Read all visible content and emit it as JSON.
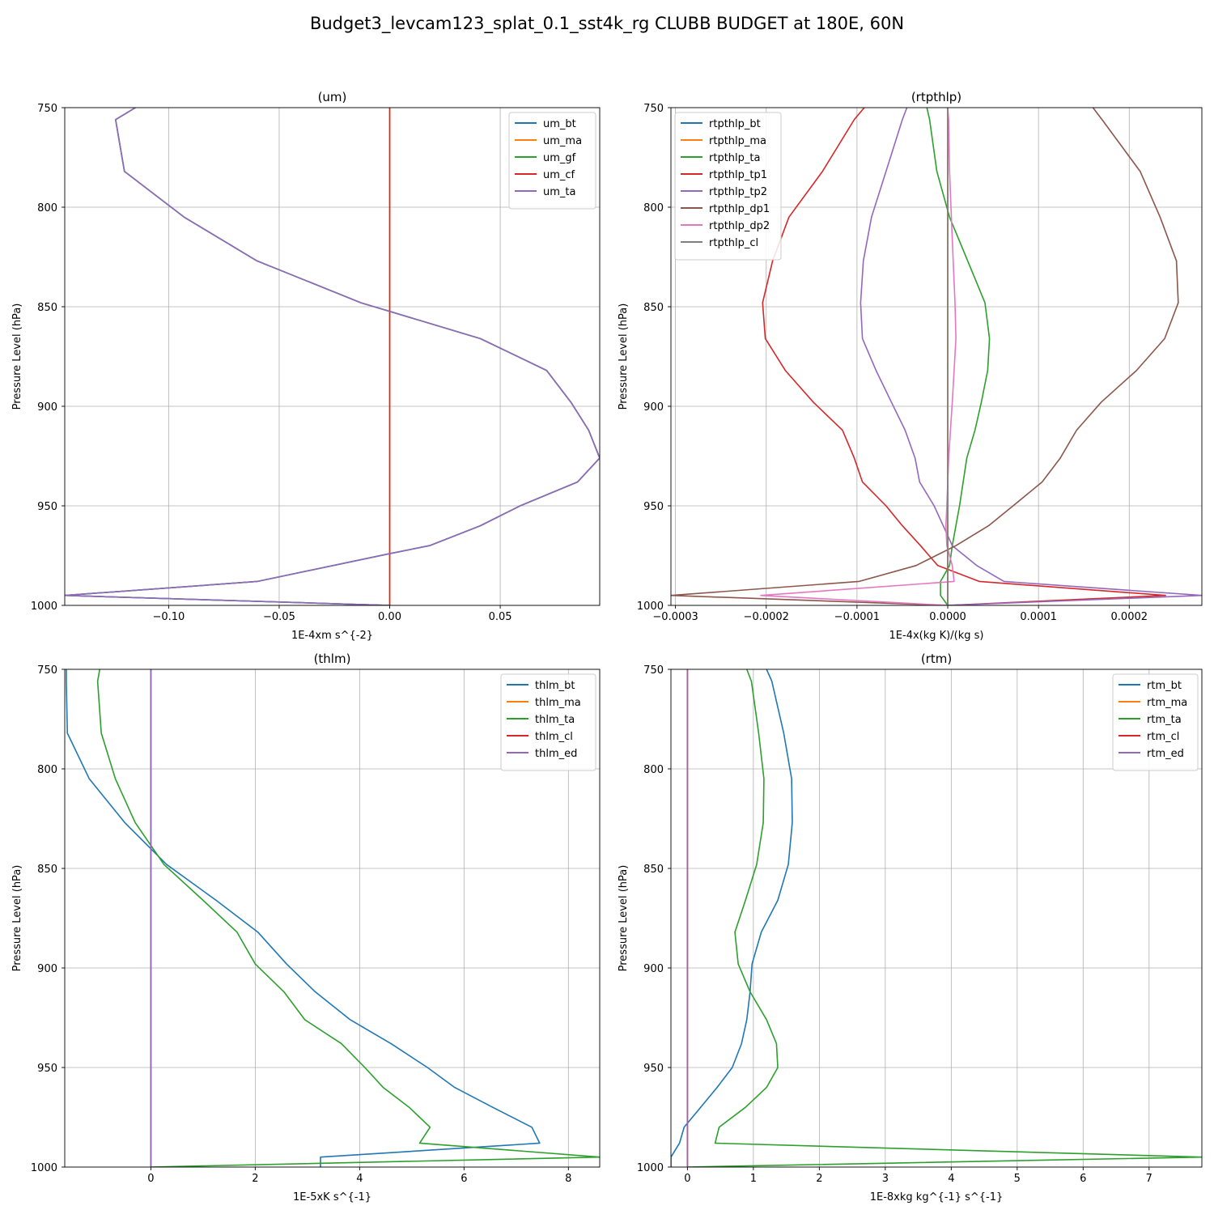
{
  "figure_title": "Budget3_levcam123_splat_0.1_sst4k_rg CLUBB BUDGET at 180E, 60N",
  "colors": {
    "c0": "#1f77b4",
    "c1": "#ff7f0e",
    "c2": "#2ca02c",
    "c3": "#d62728",
    "c4": "#9467bd",
    "c5": "#8c564b",
    "c6": "#e377c2",
    "c7": "#7f7f7f",
    "grid": "#b0b0b0"
  },
  "chart_data": [
    {
      "type": "line",
      "title": "(um)",
      "xlabel": "1E-4xm s^{-2}",
      "ylabel": "Pressure Level (hPa)",
      "xlim": [
        -0.147,
        0.095
      ],
      "ylim": [
        1000,
        750
      ],
      "grid": true,
      "legend_position": "top-right",
      "xticks": [
        -0.1,
        -0.05,
        0.0,
        0.05
      ],
      "xtick_labels": [
        "−0.10",
        "−0.05",
        "0.00",
        "0.05"
      ],
      "yticks": [
        750,
        800,
        850,
        900,
        950,
        1000
      ],
      "ytick_labels": [
        "750",
        "800",
        "850",
        "900",
        "950",
        "1000"
      ],
      "levels": [
        750,
        756,
        782,
        805,
        827,
        848,
        866,
        882,
        898,
        912,
        926,
        938,
        950,
        960,
        970,
        974,
        988,
        995,
        1000
      ],
      "series": [
        {
          "name": "um_bt",
          "color": "c0",
          "values": [
            -0.115,
            -0.124,
            -0.12,
            -0.093,
            -0.06,
            -0.013,
            0.041,
            0.071,
            0.082,
            0.09,
            0.095,
            0.085,
            0.059,
            0.041,
            0.018,
            0.0,
            -0.06,
            -0.147,
            0.0
          ]
        },
        {
          "name": "um_ma",
          "color": "c1",
          "values": [
            0,
            0,
            0,
            0,
            0,
            0,
            0,
            0,
            0,
            0,
            0,
            0,
            0,
            0,
            0,
            0,
            0,
            0,
            0
          ]
        },
        {
          "name": "um_gf",
          "color": "c2",
          "values": [
            -0.115,
            -0.124,
            -0.12,
            -0.093,
            -0.06,
            -0.013,
            0.041,
            0.071,
            0.082,
            0.09,
            0.095,
            0.085,
            0.059,
            0.041,
            0.018,
            0.0,
            -0.06,
            -0.147,
            0.0
          ]
        },
        {
          "name": "um_cf",
          "color": "c3",
          "values": [
            0,
            0,
            0,
            0,
            0,
            0,
            0,
            0,
            0,
            0,
            0,
            0,
            0,
            0,
            0,
            0,
            0,
            0,
            0
          ]
        },
        {
          "name": "um_ta",
          "color": "c4",
          "values": [
            -0.115,
            -0.124,
            -0.12,
            -0.093,
            -0.06,
            -0.013,
            0.041,
            0.071,
            0.082,
            0.09,
            0.095,
            0.085,
            0.059,
            0.041,
            0.018,
            0.0,
            -0.06,
            -0.147,
            0.0
          ]
        }
      ]
    },
    {
      "type": "line",
      "title": "(rtpthlp)",
      "xlabel": "1E-4x(kg K)/(kg s)",
      "ylabel": "Pressure Level (hPa)",
      "xlim": [
        -0.000305,
        0.00028
      ],
      "ylim": [
        1000,
        750
      ],
      "grid": true,
      "legend_position": "top-left",
      "xticks": [
        -0.0003,
        -0.0002,
        -0.0001,
        0.0,
        0.0001,
        0.0002
      ],
      "xtick_labels": [
        "−0.0003",
        "−0.0002",
        "−0.0001",
        "0.0000",
        "0.0001",
        "0.0002"
      ],
      "yticks": [
        750,
        800,
        850,
        900,
        950,
        1000
      ],
      "ytick_labels": [
        "750",
        "800",
        "850",
        "900",
        "950",
        "1000"
      ],
      "levels": [
        750,
        756,
        782,
        805,
        827,
        848,
        866,
        882,
        898,
        912,
        926,
        938,
        950,
        960,
        970,
        980,
        988,
        995,
        1000
      ],
      "series": [
        {
          "name": "rtpthlp_bt",
          "color": "c0",
          "values": [
            0,
            0,
            0,
            0,
            0,
            0,
            0,
            0,
            0,
            0,
            0,
            0,
            0,
            0,
            0,
            0,
            0,
            0,
            0
          ]
        },
        {
          "name": "rtpthlp_ma",
          "color": "c1",
          "values": [
            0,
            0,
            0,
            0,
            0,
            0,
            0,
            0,
            0,
            0,
            0,
            0,
            0,
            0,
            0,
            0,
            0,
            0,
            0
          ]
        },
        {
          "name": "rtpthlp_ta",
          "color": "c2",
          "values": [
            -2.3e-05,
            -2e-05,
            -1.2e-05,
            2e-06,
            2.2e-05,
            4.1e-05,
            4.6e-05,
            4.4e-05,
            3.7e-05,
            3e-05,
            2.1e-05,
            1.7e-05,
            1.3e-05,
            9e-06,
            5e-06,
            2e-06,
            -8e-06,
            -8e-06,
            0.0
          ]
        },
        {
          "name": "rtpthlp_tp1",
          "color": "c3",
          "values": [
            -9.2e-05,
            -0.000103,
            -0.000138,
            -0.000175,
            -0.000193,
            -0.000204,
            -0.000201,
            -0.000179,
            -0.000148,
            -0.000116,
            -0.000103,
            -9.4e-05,
            -6.8e-05,
            -5e-05,
            -3e-05,
            -1.1e-05,
            3.5e-05,
            0.00024,
            0.0
          ]
        },
        {
          "name": "rtpthlp_tp2",
          "color": "c4",
          "values": [
            -4.5e-05,
            -5e-05,
            -6.8e-05,
            -8.4e-05,
            -9.3e-05,
            -9.6e-05,
            -9.4e-05,
            -7.9e-05,
            -6.2e-05,
            -4.7e-05,
            -3.6e-05,
            -3.1e-05,
            -1.5e-05,
            -5e-06,
            5e-06,
            3.2e-05,
            6.2e-05,
            0.00028,
            0.0
          ]
        },
        {
          "name": "rtpthlp_dp1",
          "color": "c5",
          "values": [
            0.00016,
            0.00017,
            0.000212,
            0.000234,
            0.000252,
            0.000254,
            0.000239,
            0.000208,
            0.000169,
            0.000142,
            0.000124,
            0.000104,
            7.2e-05,
            4.5e-05,
            9e-06,
            -3.5e-05,
            -9.8e-05,
            -0.000305,
            0.0
          ]
        },
        {
          "name": "rtpthlp_dp2",
          "color": "c6",
          "values": [
            0.0,
            1e-06,
            2e-06,
            4e-06,
            6e-06,
            8e-06,
            9e-06,
            7e-06,
            5e-06,
            3e-06,
            1e-06,
            0.0,
            -1e-06,
            -2e-06,
            -1e-06,
            5e-06,
            7e-06,
            -0.000206,
            0.0
          ]
        },
        {
          "name": "rtpthlp_cl",
          "color": "c7",
          "values": [
            0,
            0,
            0,
            0,
            0,
            0,
            0,
            0,
            0,
            0,
            0,
            0,
            0,
            0,
            0,
            0,
            0,
            0,
            0
          ]
        }
      ]
    },
    {
      "type": "line",
      "title": "(thlm)",
      "xlabel": "1E-5xK s^{-1}",
      "ylabel": "Pressure Level (hPa)",
      "xlim": [
        -1.65,
        8.6
      ],
      "ylim": [
        1000,
        750
      ],
      "grid": true,
      "legend_position": "top-right",
      "xticks": [
        0,
        2,
        4,
        6,
        8
      ],
      "xtick_labels": [
        "0",
        "2",
        "4",
        "6",
        "8"
      ],
      "yticks": [
        750,
        800,
        850,
        900,
        950,
        1000
      ],
      "ytick_labels": [
        "750",
        "800",
        "850",
        "900",
        "950",
        "1000"
      ],
      "levels": [
        750,
        756,
        782,
        805,
        827,
        848,
        866,
        882,
        898,
        912,
        926,
        938,
        950,
        960,
        970,
        980,
        988,
        995,
        1000
      ],
      "series": [
        {
          "name": "thlm_bt",
          "color": "c0",
          "values": [
            -1.62,
            -1.62,
            -1.6,
            -1.18,
            -0.5,
            0.3,
            1.25,
            2.05,
            2.6,
            3.15,
            3.82,
            4.6,
            5.3,
            5.82,
            6.55,
            7.3,
            7.45,
            3.25,
            3.25
          ]
        },
        {
          "name": "thlm_ma",
          "color": "c1",
          "values": [
            0,
            0,
            0,
            0,
            0,
            0,
            0,
            0,
            0,
            0,
            0,
            0,
            0,
            0,
            0,
            0,
            0,
            0,
            0
          ]
        },
        {
          "name": "thlm_ta",
          "color": "c2",
          "values": [
            -0.98,
            -1.02,
            -0.95,
            -0.68,
            -0.3,
            0.25,
            1.0,
            1.65,
            2.0,
            2.55,
            2.95,
            3.65,
            4.1,
            4.45,
            4.95,
            5.35,
            5.15,
            8.6,
            0.0
          ]
        },
        {
          "name": "thlm_cl",
          "color": "c3",
          "values": [
            0,
            0,
            0,
            0,
            0,
            0,
            0,
            0,
            0,
            0,
            0,
            0,
            0,
            0,
            0,
            0,
            0,
            0,
            0
          ]
        },
        {
          "name": "thlm_ed",
          "color": "c4",
          "values": [
            0,
            0,
            0,
            0,
            0,
            0,
            0,
            0,
            0,
            0,
            0,
            0,
            0,
            0,
            0,
            0,
            0,
            0,
            0
          ]
        }
      ]
    },
    {
      "type": "line",
      "title": "(rtm)",
      "xlabel": "1E-8xkg kg^{-1} s^{-1}",
      "ylabel": "Pressure Level (hPa)",
      "xlim": [
        -0.25,
        7.8
      ],
      "ylim": [
        1000,
        750
      ],
      "grid": true,
      "legend_position": "top-right",
      "xticks": [
        0,
        1,
        2,
        3,
        4,
        5,
        6,
        7
      ],
      "xtick_labels": [
        "0",
        "1",
        "2",
        "3",
        "4",
        "5",
        "6",
        "7"
      ],
      "yticks": [
        750,
        800,
        850,
        900,
        950,
        1000
      ],
      "ytick_labels": [
        "750",
        "800",
        "850",
        "900",
        "950",
        "1000"
      ],
      "levels": [
        750,
        756,
        782,
        805,
        827,
        848,
        866,
        882,
        898,
        912,
        926,
        938,
        950,
        960,
        970,
        980,
        988,
        995,
        1000
      ],
      "series": [
        {
          "name": "rtm_bt",
          "color": "c0",
          "values": [
            1.2,
            1.28,
            1.46,
            1.58,
            1.59,
            1.53,
            1.37,
            1.12,
            0.98,
            0.95,
            0.9,
            0.82,
            0.68,
            0.45,
            0.2,
            -0.05,
            -0.12,
            -0.25,
            -0.25
          ]
        },
        {
          "name": "rtm_ma",
          "color": "c1",
          "values": [
            0,
            0,
            0,
            0,
            0,
            0,
            0,
            0,
            0,
            0,
            0,
            0,
            0,
            0,
            0,
            0,
            0,
            0,
            0
          ]
        },
        {
          "name": "rtm_ta",
          "color": "c2",
          "values": [
            0.9,
            0.97,
            1.08,
            1.16,
            1.15,
            1.05,
            0.88,
            0.72,
            0.77,
            0.95,
            1.2,
            1.35,
            1.37,
            1.2,
            0.88,
            0.48,
            0.42,
            7.8,
            0.0
          ]
        },
        {
          "name": "rtm_cl",
          "color": "c3",
          "values": [
            0,
            0,
            0,
            0,
            0,
            0,
            0,
            0,
            0,
            0,
            0,
            0,
            0,
            0,
            0,
            0,
            0,
            0,
            0
          ]
        },
        {
          "name": "rtm_ed",
          "color": "c4",
          "values": [
            0,
            0,
            0,
            0,
            0,
            0,
            0,
            0,
            0,
            0,
            0,
            0,
            0,
            0,
            0,
            0,
            0,
            0,
            0
          ]
        }
      ]
    }
  ]
}
